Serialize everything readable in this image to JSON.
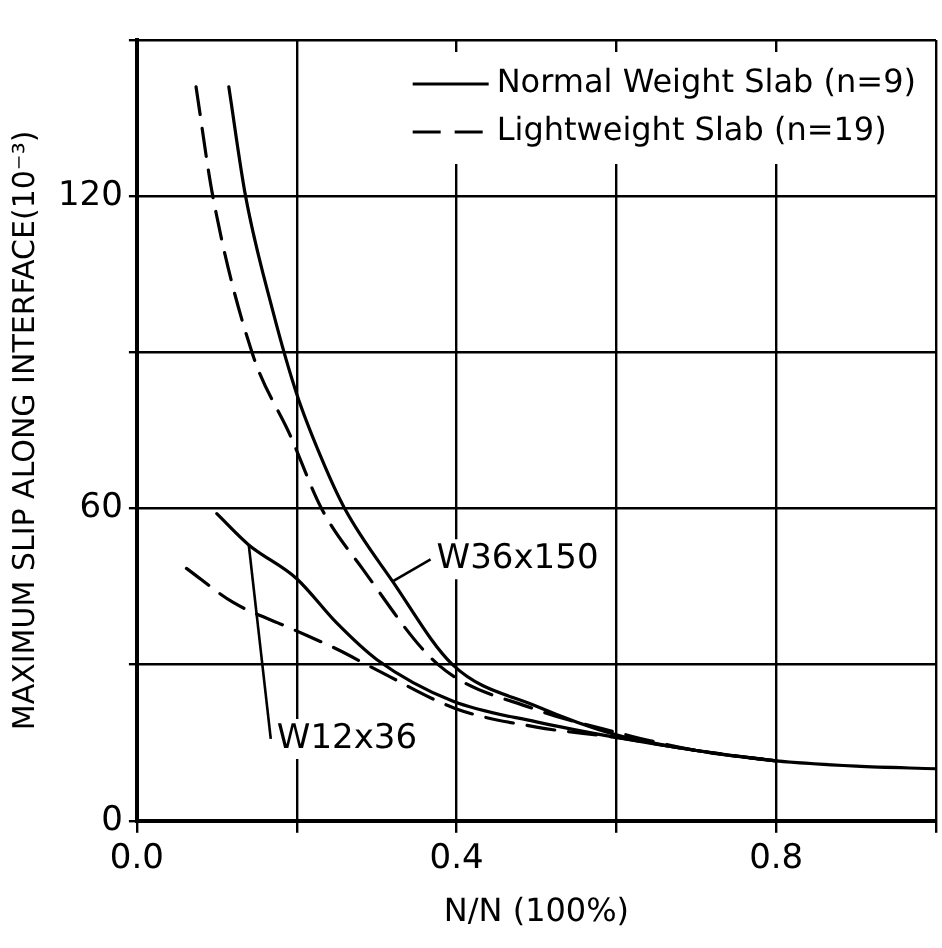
{
  "chart_data": {
    "type": "line",
    "xlabel": "N/N (100%)",
    "ylabel": "MAXIMUM SLIP ALONG INTERFACE(10⁻³)",
    "xlim": [
      0,
      1
    ],
    "xticks": [
      {
        "value": 0,
        "label": "0.0"
      },
      {
        "value": 0.2,
        "label": null
      },
      {
        "value": 0.4,
        "label": "0.4"
      },
      {
        "value": 0.6,
        "label": null
      },
      {
        "value": 0.8,
        "label": "0.8"
      },
      {
        "value": 1,
        "label": null
      }
    ],
    "ylim": [
      0,
      150
    ],
    "yticks": [
      0,
      {
        "value": 30,
        "label": null
      },
      60,
      {
        "value": 90,
        "label": null
      },
      120,
      {
        "value": 150,
        "label": null
      }
    ],
    "grid": true,
    "legend": "top right",
    "marker": "none",
    "series": [
      {
        "name": "Normal Weight Slab (n=9)",
        "color": "#000000",
        "line_style": "solid",
        "x": [
          0.115,
          0.136,
          0.17,
          0.2,
          0.23,
          0.26,
          0.32,
          0.395,
          0.5,
          0.6,
          0.7,
          0.8,
          0.9,
          1.0
        ],
        "values": [
          141,
          120,
          98,
          82,
          70,
          60,
          46,
          30,
          22,
          16.5,
          13.5,
          11.5,
          10.5,
          10
        ]
      },
      {
        "name": "Lightweight Slab (n=19)",
        "color": "#000000",
        "line_style": "dashed",
        "x": [
          0.074,
          0.095,
          0.144,
          0.192,
          0.231,
          0.282,
          0.377,
          0.497,
          0.6,
          0.7,
          0.8
        ],
        "values": [
          141,
          120,
          90,
          74,
          60,
          48.5,
          30,
          21.5,
          17,
          13.5,
          11.5
        ]
      },
      {
        "color": "#000000",
        "line_style": "solid",
        "x": [
          0.1,
          0.14,
          0.2,
          0.25,
          0.3,
          0.395,
          0.5,
          0.6,
          0.7,
          0.8
        ],
        "values": [
          59,
          53,
          46.5,
          38,
          31,
          23,
          19,
          16,
          13.5,
          11.5
        ]
      },
      {
        "color": "#000000",
        "line_style": "dashed",
        "x": [
          0.062,
          0.12,
          0.192,
          0.25,
          0.3,
          0.4,
          0.5,
          0.6,
          0.7,
          0.8
        ],
        "values": [
          48.5,
          42,
          37,
          33,
          29,
          21.5,
          18,
          16,
          13.5,
          11.5
        ]
      }
    ],
    "annotations": [
      {
        "text": "W36x150",
        "x": 0.32,
        "y": 46
      },
      {
        "text": "W12x36",
        "x": 0.14,
        "y": 53
      }
    ]
  }
}
